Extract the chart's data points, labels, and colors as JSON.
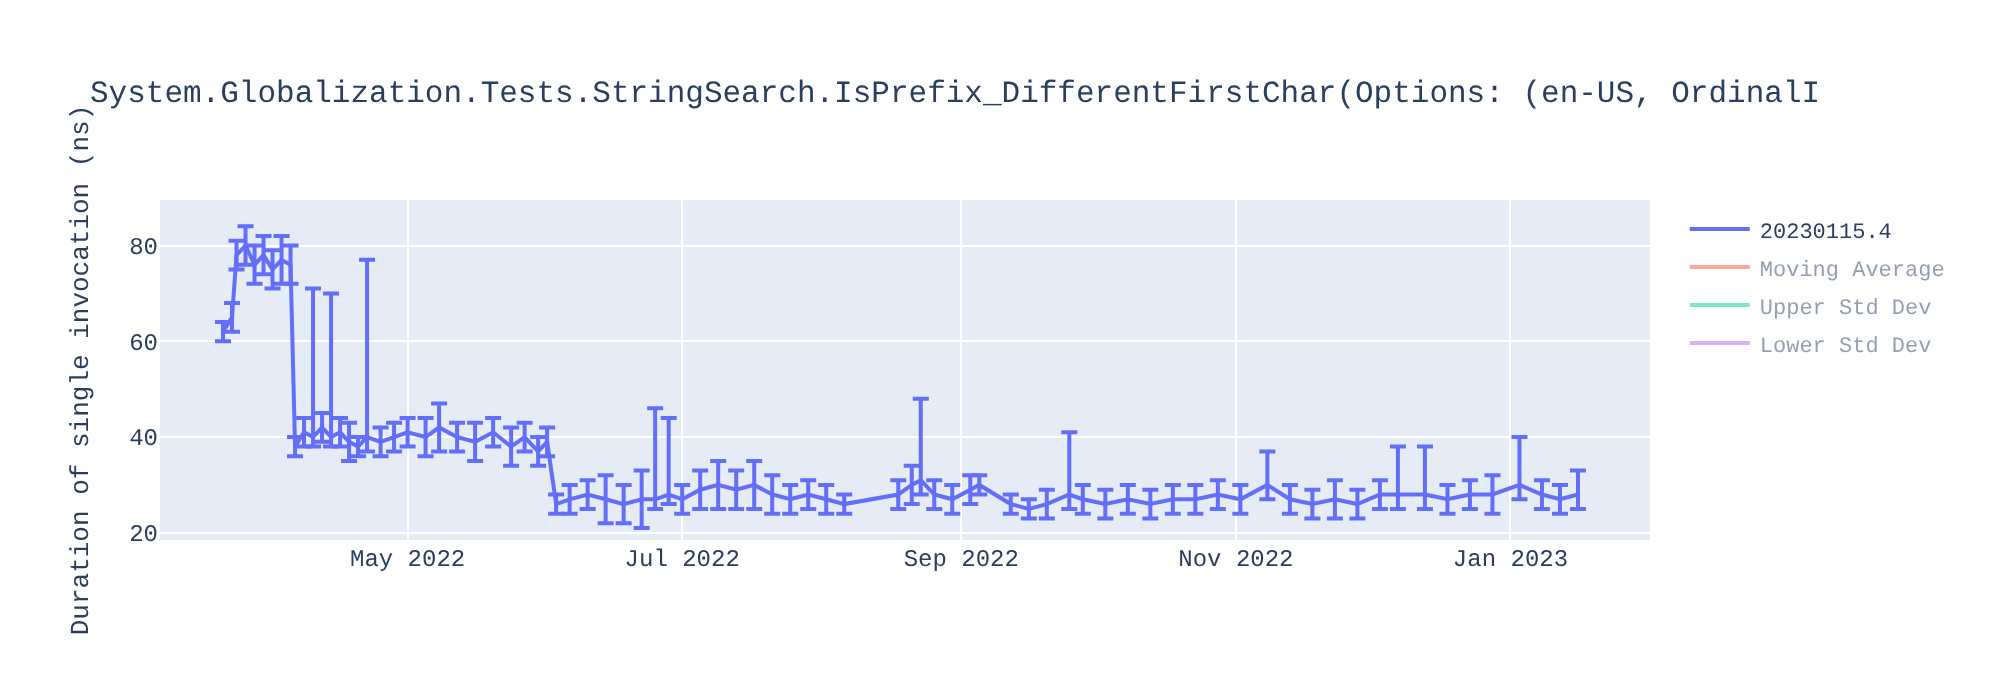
{
  "chart_data": {
    "type": "line",
    "title": "System.Globalization.Tests.StringSearch.IsPrefix_DifferentFirstChar(Options: (en-US, OrdinalI",
    "ylabel": "Duration of single invocation (ns)",
    "x": [
      "2022-03-21",
      "2022-03-23",
      "2022-03-24",
      "2022-03-26",
      "2022-03-28",
      "2022-03-30",
      "2022-04-01",
      "2022-04-03",
      "2022-04-05",
      "2022-04-06",
      "2022-04-08",
      "2022-04-10",
      "2022-04-12",
      "2022-04-14",
      "2022-04-16",
      "2022-04-18",
      "2022-04-20",
      "2022-04-22",
      "2022-04-25",
      "2022-04-28",
      "2022-05-01",
      "2022-05-05",
      "2022-05-08",
      "2022-05-12",
      "2022-05-16",
      "2022-05-20",
      "2022-05-24",
      "2022-05-27",
      "2022-05-30",
      "2022-06-01",
      "2022-06-03",
      "2022-06-06",
      "2022-06-10",
      "2022-06-14",
      "2022-06-18",
      "2022-06-22",
      "2022-06-25",
      "2022-06-28",
      "2022-07-01",
      "2022-07-05",
      "2022-07-09",
      "2022-07-13",
      "2022-07-17",
      "2022-07-21",
      "2022-07-25",
      "2022-07-29",
      "2022-08-02",
      "2022-08-06",
      "2022-08-18",
      "2022-08-21",
      "2022-08-23",
      "2022-08-26",
      "2022-08-30",
      "2022-09-03",
      "2022-09-05",
      "2022-09-12",
      "2022-09-16",
      "2022-09-20",
      "2022-09-25",
      "2022-09-28",
      "2022-10-03",
      "2022-10-08",
      "2022-10-13",
      "2022-10-18",
      "2022-10-23",
      "2022-10-28",
      "2022-11-02",
      "2022-11-08",
      "2022-11-13",
      "2022-11-18",
      "2022-11-23",
      "2022-11-28",
      "2022-12-03",
      "2022-12-07",
      "2022-12-13",
      "2022-12-18",
      "2022-12-23",
      "2022-12-28",
      "2023-01-03",
      "2023-01-08",
      "2023-01-12",
      "2023-01-16"
    ],
    "series": [
      {
        "name": "20230115.4",
        "color": "#636efa",
        "values": [
          62,
          65,
          78,
          80,
          76,
          78,
          75,
          77,
          76,
          38,
          41,
          40,
          42,
          40,
          41,
          39,
          38,
          40,
          39,
          40,
          41,
          40,
          42,
          40,
          39,
          41,
          38,
          40,
          37,
          39,
          26,
          27,
          28,
          27,
          26,
          27,
          27,
          28,
          27,
          29,
          30,
          29,
          30,
          28,
          27,
          28,
          27,
          26,
          28,
          30,
          31,
          28,
          27,
          29,
          30,
          26,
          25,
          26,
          28,
          27,
          26,
          27,
          26,
          27,
          27,
          28,
          27,
          30,
          27,
          26,
          27,
          26,
          28,
          28,
          28,
          27,
          28,
          28,
          30,
          28,
          27,
          28
        ],
        "errors": [
          2,
          3,
          3,
          4,
          4,
          4,
          4,
          5,
          4,
          2,
          3,
          [
            38,
            71
          ],
          3,
          [
            38,
            70
          ],
          3,
          4,
          2,
          [
            37,
            77
          ],
          3,
          3,
          3,
          4,
          5,
          3,
          4,
          3,
          4,
          3,
          3,
          3,
          2,
          3,
          3,
          5,
          4,
          6,
          [
            25,
            46
          ],
          [
            26,
            44
          ],
          3,
          4,
          5,
          4,
          5,
          4,
          3,
          3,
          3,
          2,
          3,
          4,
          [
            28,
            48
          ],
          3,
          3,
          3,
          2,
          2,
          2,
          3,
          [
            25,
            41
          ],
          3,
          3,
          3,
          3,
          3,
          3,
          3,
          3,
          [
            27,
            37
          ],
          3,
          3,
          4,
          3,
          3,
          [
            25,
            38
          ],
          [
            25,
            38
          ],
          3,
          3,
          4,
          [
            27,
            40
          ],
          3,
          3,
          [
            25,
            33
          ]
        ]
      },
      {
        "name": "Moving Average",
        "color": "#ef553b",
        "values": [
          null,
          null,
          null,
          null,
          null,
          null,
          null,
          null,
          null,
          null,
          null,
          null,
          null,
          null,
          null,
          null,
          null,
          null,
          null,
          null,
          null,
          null,
          null,
          null,
          null,
          null,
          null,
          null,
          null,
          null,
          null,
          null,
          null,
          null,
          null,
          null,
          null,
          null,
          null,
          null,
          null,
          null,
          null,
          null,
          null,
          null,
          null,
          null,
          null,
          null,
          null,
          null,
          null,
          null,
          null,
          null,
          null,
          null,
          null,
          null,
          null,
          null,
          null,
          null,
          null,
          null,
          null,
          null,
          null,
          null,
          null,
          null,
          null,
          null,
          null,
          null,
          null,
          null,
          null,
          null,
          null,
          null
        ]
      },
      {
        "name": "Upper Std Dev",
        "color": "#00cc96",
        "values": [
          null,
          null,
          null,
          null,
          null,
          null,
          null,
          null,
          null,
          null,
          null,
          null,
          null,
          null,
          null,
          null,
          null,
          null,
          null,
          null,
          null,
          null,
          null,
          null,
          null,
          null,
          null,
          null,
          null,
          null,
          null,
          null,
          null,
          null,
          null,
          null,
          null,
          null,
          null,
          null,
          null,
          null,
          null,
          null,
          null,
          null,
          null,
          null,
          null,
          null,
          null,
          null,
          null,
          null,
          null,
          null,
          null,
          null,
          null,
          null,
          null,
          null,
          null,
          null,
          null,
          null,
          null,
          null,
          null,
          null,
          null,
          null,
          null,
          null,
          null,
          null,
          null,
          null,
          null,
          null,
          null,
          null
        ]
      },
      {
        "name": "Lower Std Dev",
        "color": "#ab63fa",
        "values": [
          null,
          null,
          null,
          null,
          null,
          null,
          null,
          null,
          null,
          null,
          null,
          null,
          null,
          null,
          null,
          null,
          null,
          null,
          null,
          null,
          null,
          null,
          null,
          null,
          null,
          null,
          null,
          null,
          null,
          null,
          null,
          null,
          null,
          null,
          null,
          null,
          null,
          null,
          null,
          null,
          null,
          null,
          null,
          null,
          null,
          null,
          null,
          null,
          null,
          null,
          null,
          null,
          null,
          null,
          null,
          null,
          null,
          null,
          null,
          null,
          null,
          null,
          null,
          null,
          null,
          null,
          null,
          null,
          null,
          null,
          null,
          null,
          null,
          null,
          null,
          null,
          null,
          null,
          null,
          null,
          null,
          null
        ]
      }
    ],
    "xlim": [
      "2022-03-07",
      "2023-02-01"
    ],
    "xticks": [
      {
        "value": "2022-05-01",
        "label": "May 2022"
      },
      {
        "value": "2022-07-01",
        "label": "Jul 2022"
      },
      {
        "value": "2022-09-01",
        "label": "Sep 2022"
      },
      {
        "value": "2022-11-01",
        "label": "Nov 2022"
      },
      {
        "value": "2023-01-01",
        "label": "Jan 2023"
      }
    ],
    "ylim": [
      18.5,
      89.5
    ],
    "yticks": [
      20,
      40,
      60,
      80
    ],
    "grid": true,
    "legend": "top right",
    "marker": "none",
    "line_style": "solid"
  }
}
